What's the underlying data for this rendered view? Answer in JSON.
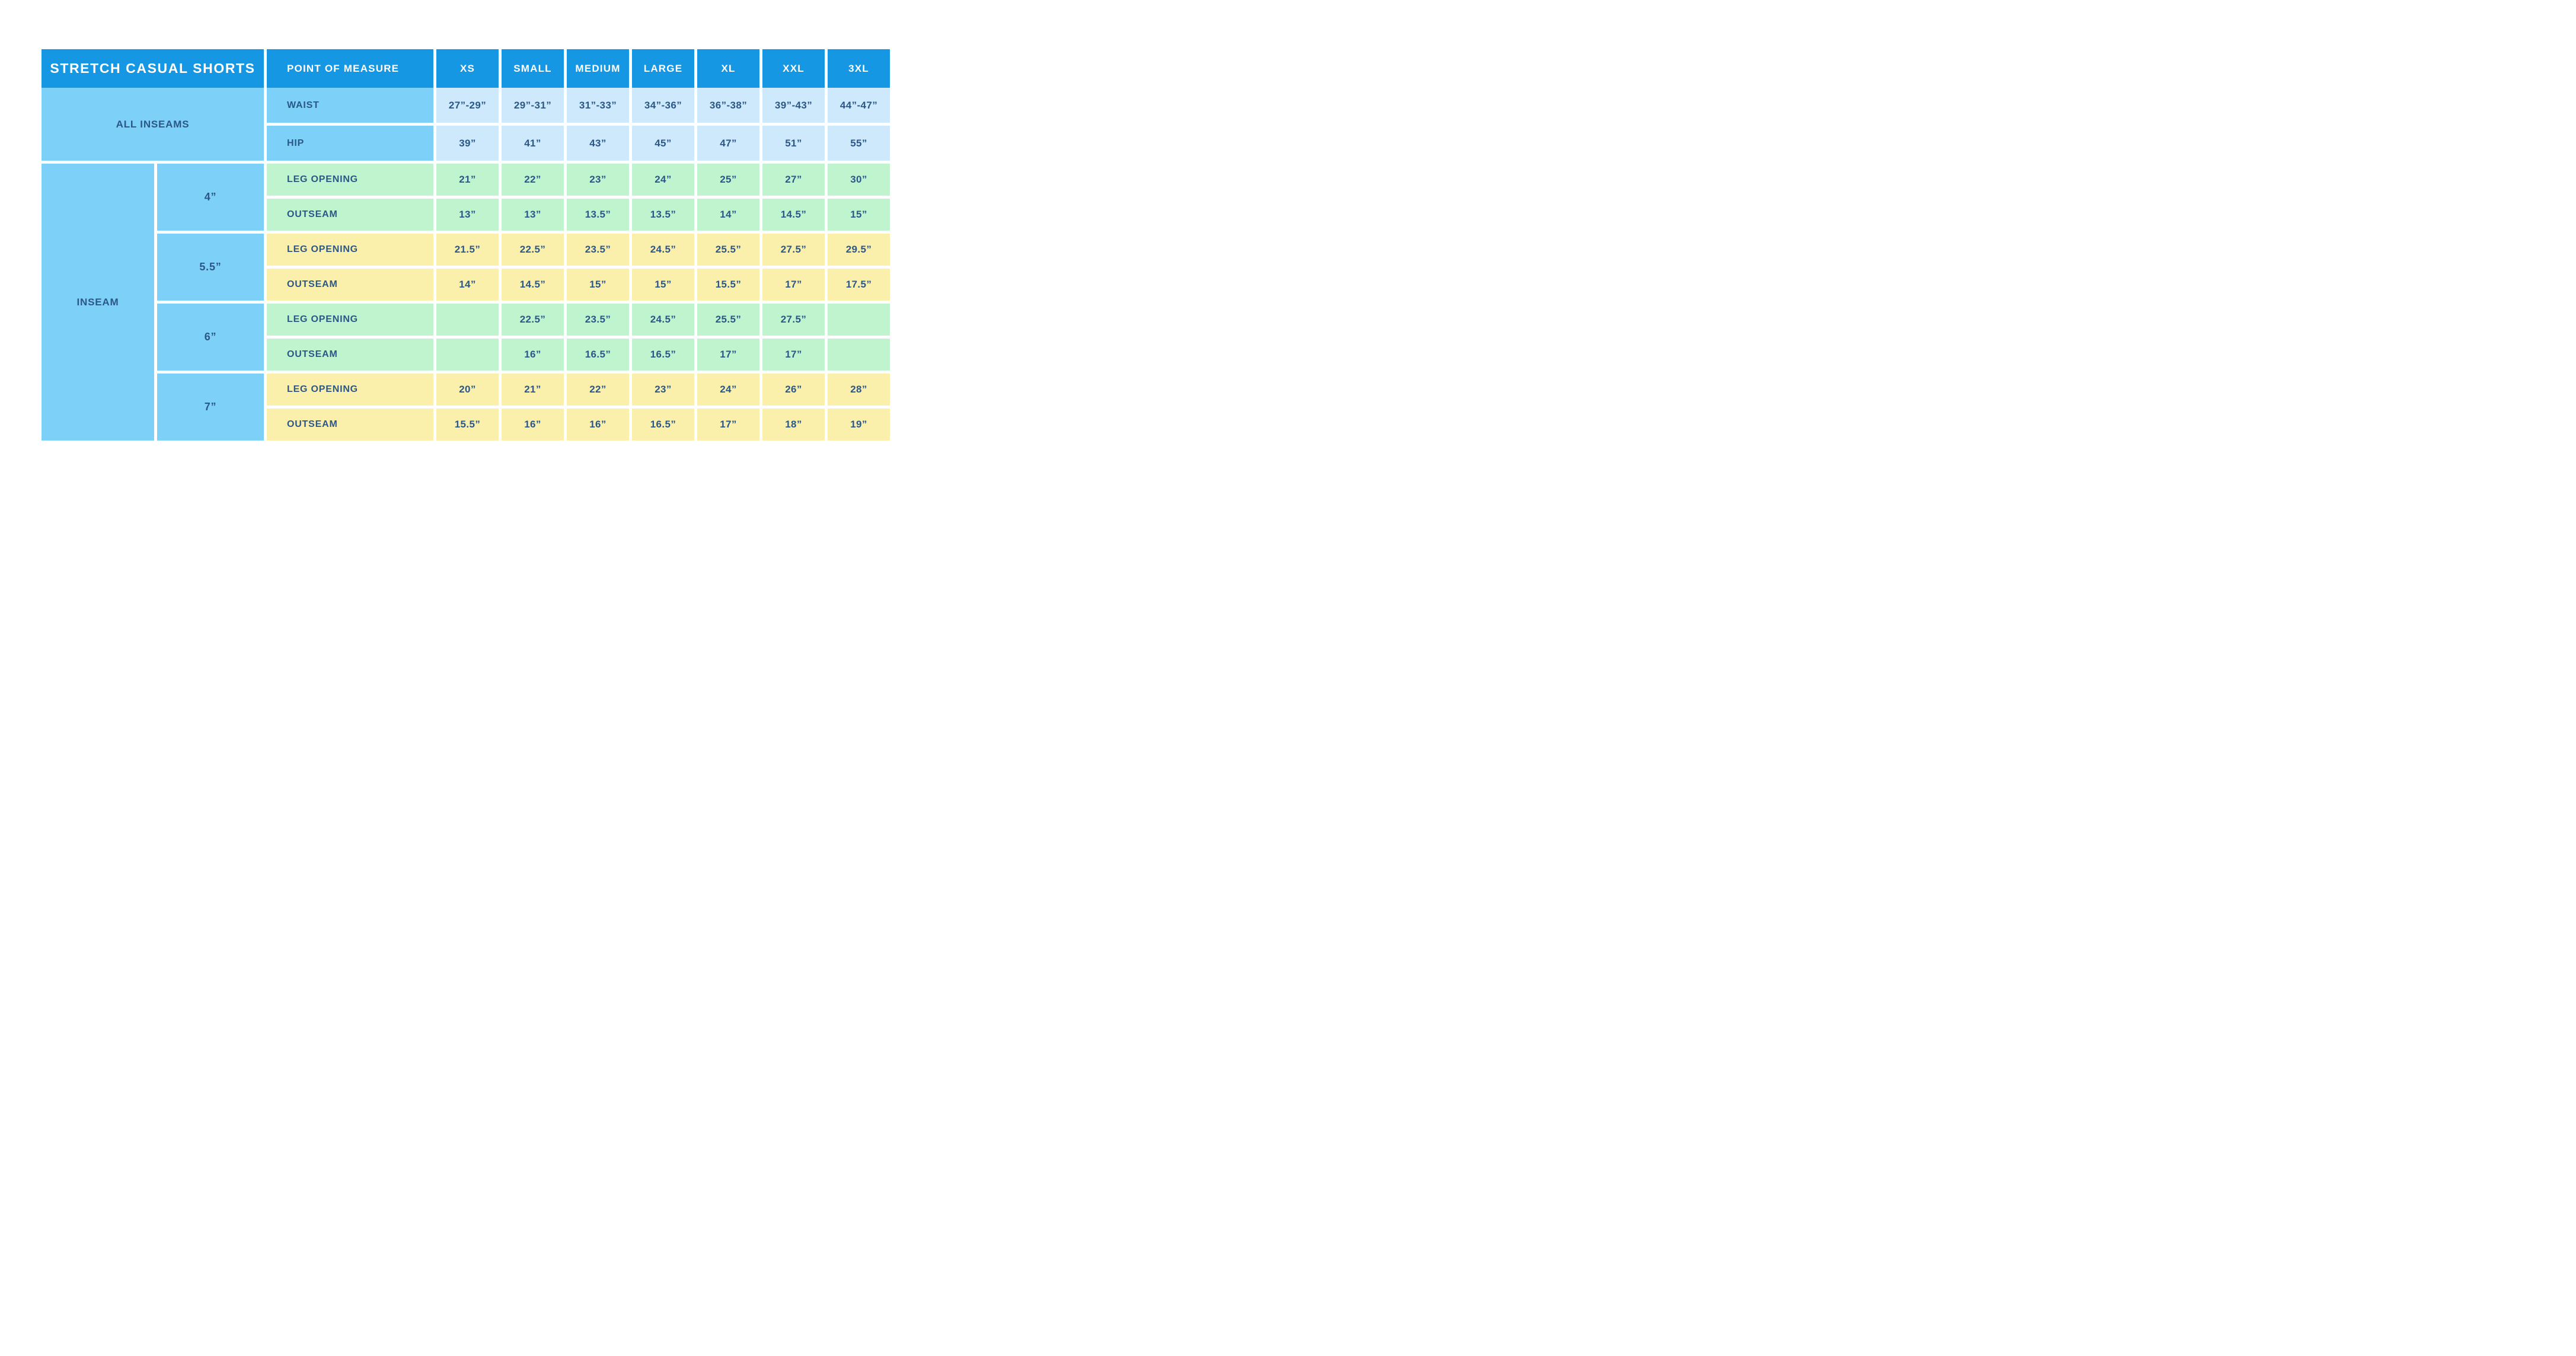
{
  "chart_data": {
    "type": "table",
    "title": "STRETCH CASUAL SHORTS",
    "point_of_measure_header": "POINT OF MEASURE",
    "size_headers": [
      "XS",
      "SMALL",
      "MEDIUM",
      "LARGE",
      "XL",
      "XXL",
      "3XL"
    ],
    "all_inseams": {
      "label": "ALL INSEAMS",
      "rows": [
        {
          "label": "WAIST",
          "values": [
            "27”-29”",
            "29”-31”",
            "31”-33”",
            "34”-36”",
            "36”-38”",
            "39”-43”",
            "44”-47”"
          ]
        },
        {
          "label": "HIP",
          "values": [
            "39”",
            "41”",
            "43”",
            "45”",
            "47”",
            "51”",
            "55”"
          ]
        }
      ]
    },
    "inseam": {
      "label": "INSEAM",
      "groups": [
        {
          "length": "4”",
          "rows": [
            {
              "label": "LEG OPENING",
              "values": [
                "21”",
                "22”",
                "23”",
                "24”",
                "25”",
                "27”",
                "30”"
              ]
            },
            {
              "label": "OUTSEAM",
              "values": [
                "13”",
                "13”",
                "13.5”",
                "13.5”",
                "14”",
                "14.5”",
                "15”"
              ]
            }
          ]
        },
        {
          "length": "5.5”",
          "rows": [
            {
              "label": "LEG OPENING",
              "values": [
                "21.5”",
                "22.5”",
                "23.5”",
                "24.5”",
                "25.5”",
                "27.5”",
                "29.5”"
              ]
            },
            {
              "label": "OUTSEAM",
              "values": [
                "14”",
                "14.5”",
                "15”",
                "15”",
                "15.5”",
                "17”",
                "17.5”"
              ]
            }
          ]
        },
        {
          "length": "6”",
          "rows": [
            {
              "label": "LEG OPENING",
              "values": [
                "",
                "22.5”",
                "23.5”",
                "24.5”",
                "25.5”",
                "27.5”",
                ""
              ]
            },
            {
              "label": "OUTSEAM",
              "values": [
                "",
                "16”",
                "16.5”",
                "16.5”",
                "17”",
                "17”",
                ""
              ]
            }
          ]
        },
        {
          "length": "7”",
          "rows": [
            {
              "label": "LEG OPENING",
              "values": [
                "20”",
                "21”",
                "22”",
                "23”",
                "24”",
                "26”",
                "28”"
              ]
            },
            {
              "label": "OUTSEAM",
              "values": [
                "15.5”",
                "16”",
                "16”",
                "16.5”",
                "17”",
                "18”",
                "19”"
              ]
            }
          ]
        }
      ]
    }
  },
  "colors": {
    "header_blue": "#1697E3",
    "sky_blue": "#7DD0F8",
    "pale_blue": "#CDE9FB",
    "mint_green": "#C0F4CF",
    "pale_yellow": "#FBEFAC",
    "text_navy": "#2B5787",
    "background": "#FFFFFF"
  }
}
